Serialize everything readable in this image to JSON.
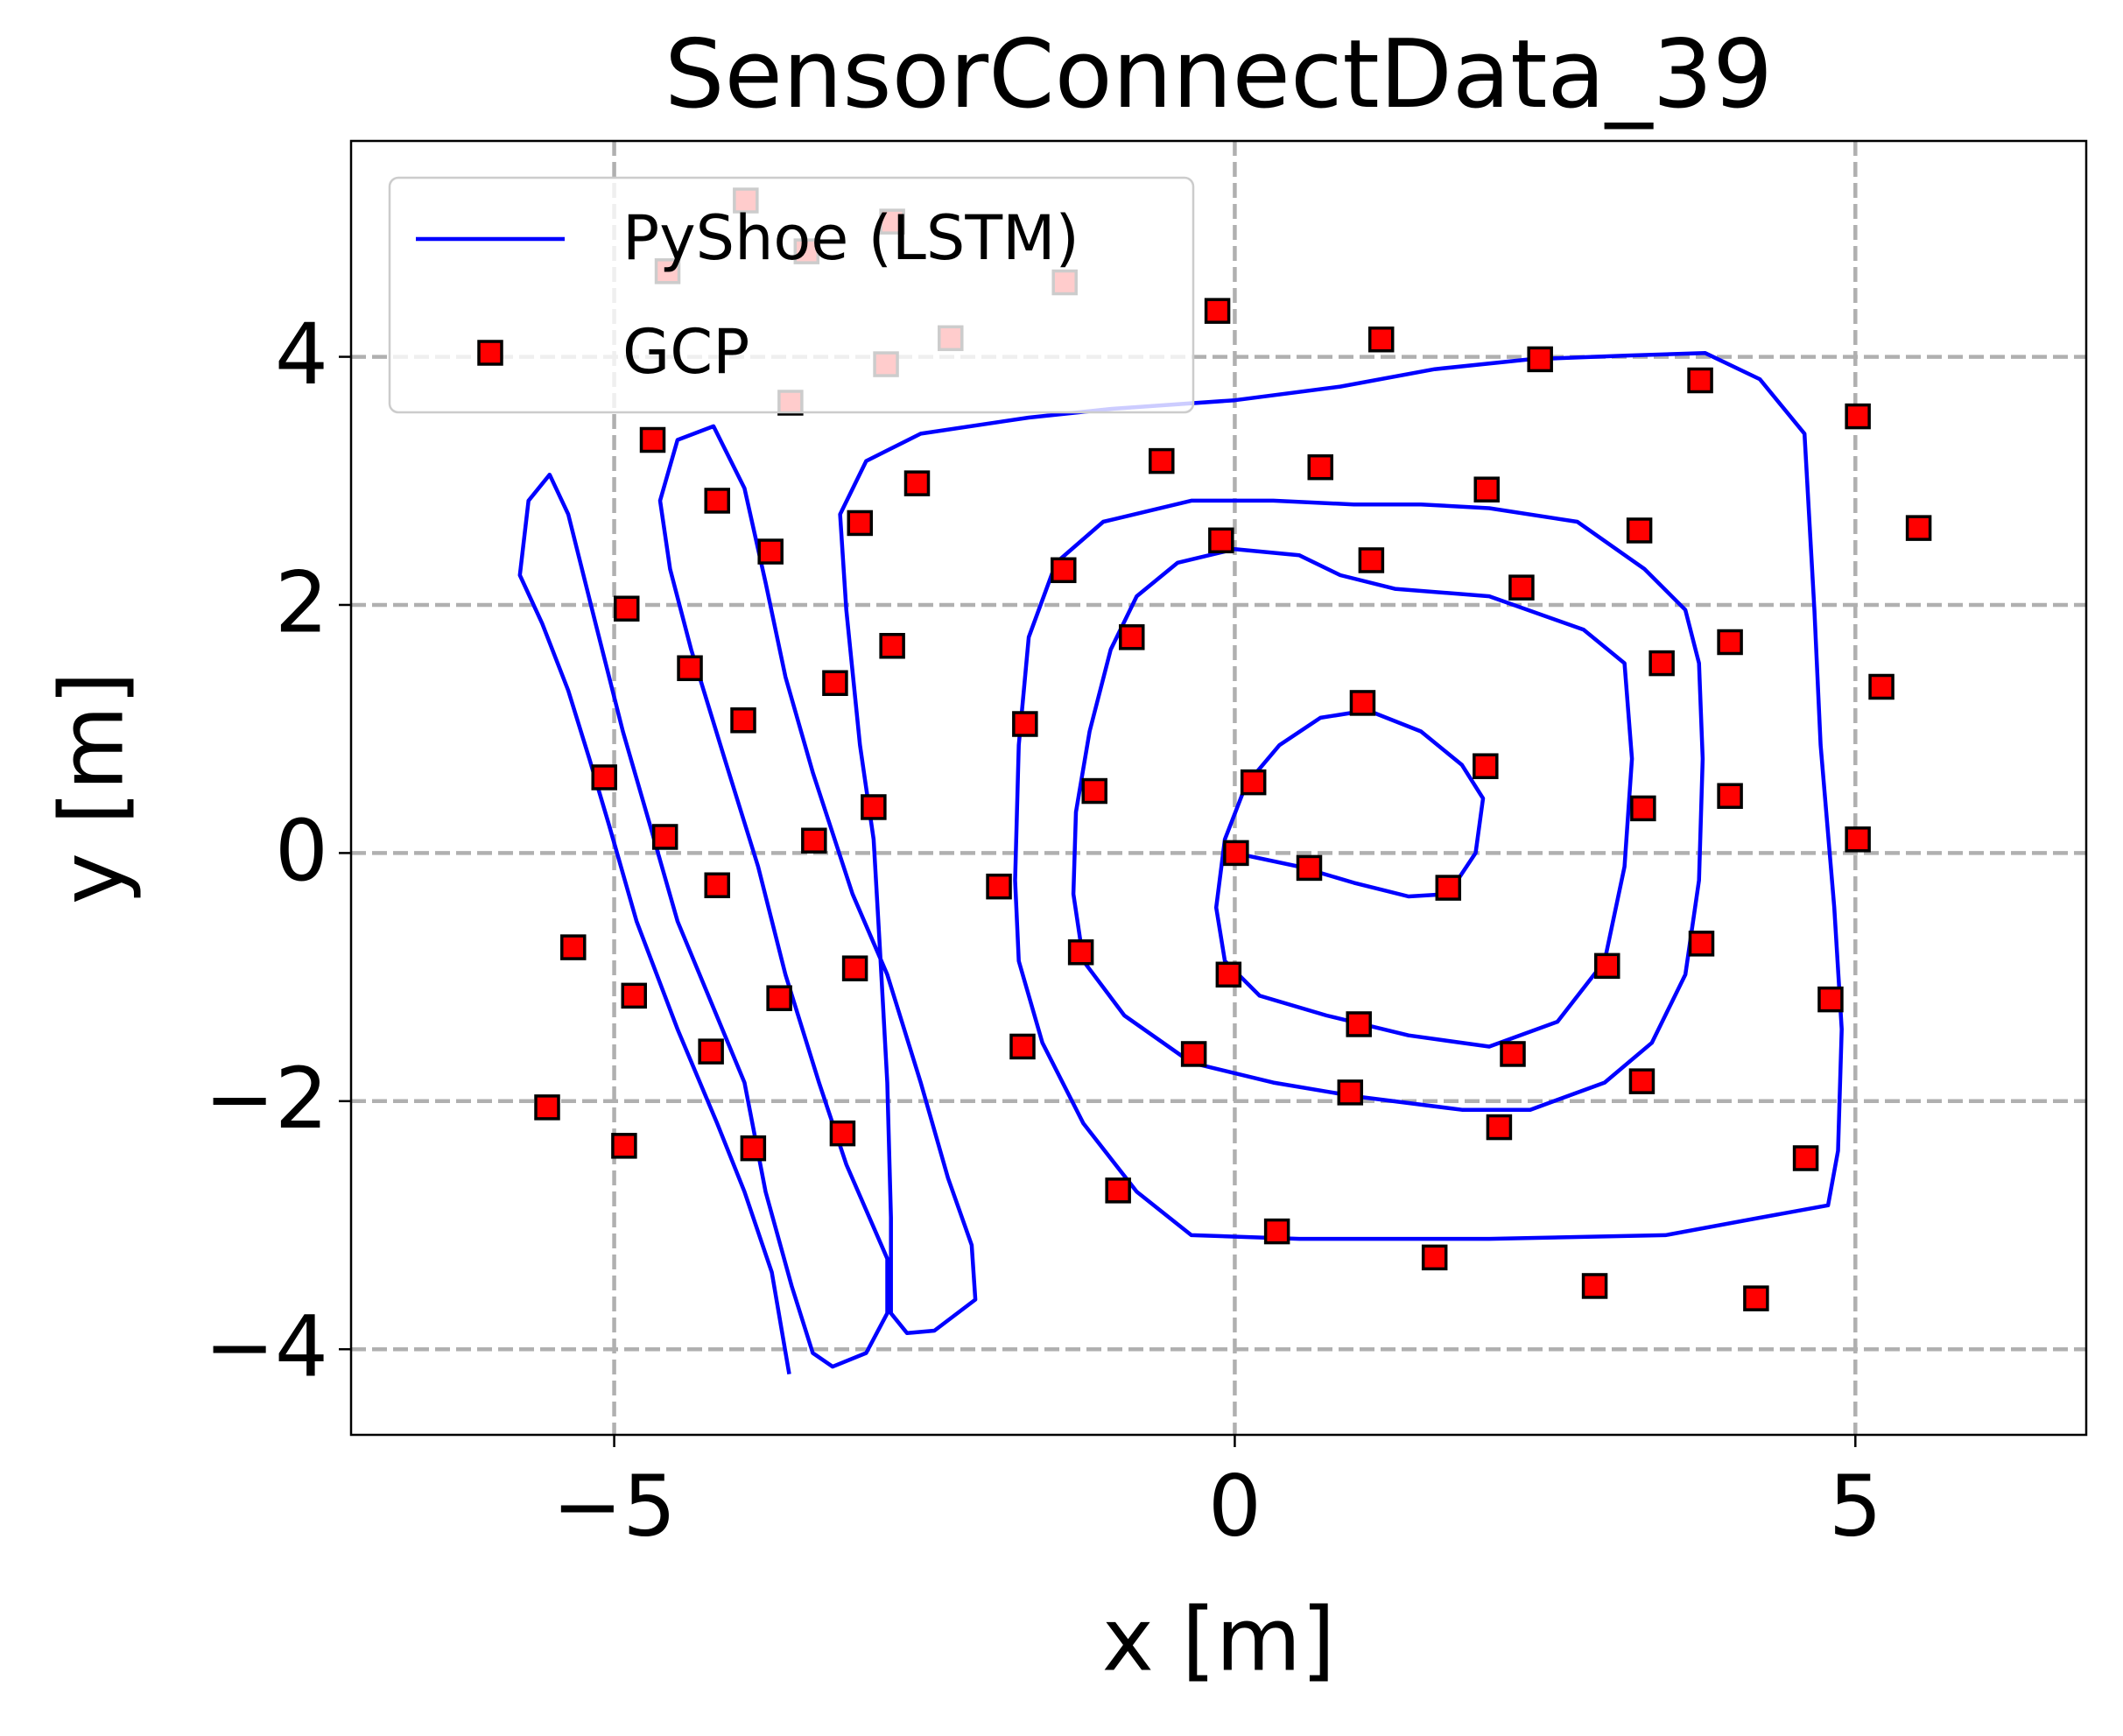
{
  "chart_data": {
    "type": "line",
    "title": "SensorConnectData_39",
    "x_label": "x [m]",
    "y_label": "y [m]",
    "xlim": [
      -7.12,
      6.86
    ],
    "ylim": [
      -4.69,
      5.74
    ],
    "xticks": [
      {
        "value": -5,
        "label": "−5"
      },
      0,
      5
    ],
    "yticks": [
      {
        "value": -4,
        "label": "−4"
      },
      {
        "value": -2,
        "label": "−2"
      },
      0,
      2,
      4
    ],
    "grid": true,
    "legend": "upper left",
    "series": [
      {
        "name": "PyShoe (LSTM)",
        "type": "line",
        "color": "#0000ff",
        "x": [
          0,
          0.52,
          0.96,
          1.4,
          1.72,
          1.94,
          2.0,
          1.83,
          1.5,
          1.07,
          0.69,
          0.36,
          0.09,
          -0.08,
          -0.15,
          -0.08,
          0.2,
          0.74,
          1.4,
          2.05,
          2.6,
          2.98,
          3.14,
          3.2,
          3.14,
          2.81,
          2.05,
          1.29,
          0.85,
          0.52,
          0,
          -0.46,
          -0.79,
          -1.0,
          -1.17,
          -1.28,
          -1.3,
          -1.22,
          -0.89,
          -0.35,
          0.31,
          0.96,
          1.83,
          2.38,
          2.98,
          3.36,
          3.63,
          3.74,
          3.77,
          3.74,
          3.63,
          3.3,
          2.76,
          2.05,
          1.5,
          0.96,
          0.31,
          -0.35,
          -1.06,
          -1.44,
          -1.66,
          -1.74,
          -1.77,
          -1.74,
          -1.55,
          -1.22,
          -0.79,
          -0.35,
          0.52,
          2.05,
          3.47,
          4.23,
          4.78,
          4.86,
          4.89,
          4.83,
          4.72,
          4.67,
          4.59,
          4.23,
          3.79,
          3.14,
          2.38,
          1.61,
          0.85,
          0,
          -1.0,
          -1.66,
          -2.53,
          -2.97,
          -3.18,
          -3.13,
          -3.02,
          -2.91,
          -2.86,
          -2.8,
          -2.77,
          -2.77,
          -2.64,
          -2.42,
          -2.09,
          -2.12,
          -2.31,
          -2.53,
          -2.8,
          -3.08,
          -3.4,
          -3.62,
          -3.78,
          -3.95,
          -4.2,
          -4.49,
          -4.63,
          -4.55,
          -4.38,
          -4.11,
          -3.84,
          -3.62,
          -3.35,
          -3.13,
          -2.8,
          -2.8,
          -2.97,
          -3.24,
          -3.4,
          -3.57,
          -3.78,
          -3.95,
          -4.22,
          -4.49,
          -4.71,
          -4.93,
          -5.15,
          -5.37,
          -5.52,
          -5.69,
          -5.76,
          -5.58,
          -5.37,
          -5.2,
          -5.04,
          -4.82,
          -4.49,
          -4.17,
          -3.95,
          -3.73,
          -3.59
        ],
        "values": [
          0,
          -0.11,
          -0.24,
          -0.35,
          -0.33,
          0,
          0.44,
          0.71,
          0.98,
          1.15,
          1.09,
          0.87,
          0.55,
          0.11,
          -0.44,
          -0.87,
          -1.15,
          -1.31,
          -1.47,
          -1.56,
          -1.36,
          -0.87,
          -0.11,
          0.76,
          1.53,
          1.8,
          2.07,
          2.13,
          2.24,
          2.4,
          2.45,
          2.34,
          2.07,
          1.64,
          0.98,
          0.33,
          -0.33,
          -0.87,
          -1.31,
          -1.69,
          -1.85,
          -1.96,
          -2.07,
          -2.07,
          -1.85,
          -1.53,
          -0.98,
          -0.22,
          0.76,
          1.53,
          1.96,
          2.29,
          2.67,
          2.78,
          2.81,
          2.81,
          2.84,
          2.84,
          2.67,
          2.34,
          1.74,
          0.87,
          -0.22,
          -0.87,
          -1.53,
          -2.18,
          -2.73,
          -3.08,
          -3.11,
          -3.11,
          -3.08,
          -2.94,
          -2.84,
          -2.4,
          -1.42,
          -0.44,
          0.87,
          1.96,
          3.38,
          3.82,
          4.03,
          4.01,
          3.98,
          3.9,
          3.76,
          3.65,
          3.58,
          3.51,
          3.38,
          3.16,
          2.73,
          1.96,
          0.87,
          0.11,
          -0.76,
          -1.85,
          -2.94,
          -3.71,
          -3.87,
          -3.85,
          -3.6,
          -3.16,
          -2.62,
          -1.85,
          -0.98,
          -0.33,
          0.65,
          1.42,
          2.18,
          2.94,
          3.44,
          3.33,
          2.84,
          2.29,
          1.64,
          0.76,
          -0.11,
          -0.98,
          -1.85,
          -2.51,
          -3.27,
          -3.71,
          -4.03,
          -4.14,
          -4.03,
          -3.49,
          -2.73,
          -1.85,
          -1.2,
          -0.55,
          0.22,
          0.98,
          1.85,
          2.73,
          3.05,
          2.84,
          2.24,
          1.85,
          1.31,
          0.76,
          0.22,
          -0.55,
          -1.42,
          -2.18,
          -2.73,
          -3.38,
          -4.2
        ]
      },
      {
        "name": "GCP",
        "type": "scatter",
        "color": "#ff0000",
        "x": [
          -3.94,
          -2.76,
          -4.57,
          -3.45,
          -1.37,
          -0.14,
          -2.29,
          -2.81,
          1.18,
          2.46,
          3.75,
          5.02,
          -3.58,
          -4.69,
          -0.59,
          0.69,
          -2.56,
          2.03,
          -4.17,
          5.51,
          -3.02,
          3.26,
          -0.11,
          -3.74,
          1.1,
          -1.38,
          2.31,
          -4.9,
          -0.83,
          3.99,
          -2.76,
          3.44,
          -4.39,
          -3.22,
          5.21,
          -3.96,
          -1.69,
          1.03,
          2.02,
          0.15,
          -5.08,
          -1.13,
          3.99,
          -2.91,
          3.29,
          -4.59,
          -3.39,
          5.02,
          0.01,
          0.6,
          -1.9,
          -4.17,
          1.72,
          3.76,
          -5.33,
          -1.24,
          3.0,
          -3.06,
          -0.05,
          -4.84,
          -3.67,
          4.8,
          1.0,
          -1.71,
          -0.33,
          -4.22,
          2.24,
          3.28,
          0.93,
          -5.54,
          -3.16,
          2.13,
          -4.92,
          -3.88,
          4.6,
          -0.94,
          0.34,
          1.61,
          2.9,
          4.2
        ],
        "values": [
          5.26,
          5.09,
          4.69,
          4.85,
          4.6,
          4.37,
          4.15,
          3.94,
          4.14,
          3.98,
          3.81,
          3.52,
          3.63,
          3.33,
          3.16,
          3.11,
          2.98,
          2.93,
          2.84,
          2.62,
          2.66,
          2.6,
          2.52,
          2.43,
          2.36,
          2.28,
          2.14,
          1.97,
          1.74,
          1.7,
          1.67,
          1.53,
          1.49,
          1.37,
          1.34,
          1.07,
          1.04,
          1.21,
          0.7,
          0.57,
          0.61,
          0.5,
          0.46,
          0.37,
          0.36,
          0.13,
          0.1,
          0.11,
          0.0,
          -0.12,
          -0.27,
          -0.26,
          -0.28,
          -0.73,
          -0.76,
          -0.8,
          -0.91,
          -0.93,
          -0.98,
          -1.15,
          -1.17,
          -1.18,
          -1.38,
          -1.56,
          -1.62,
          -1.6,
          -1.62,
          -1.84,
          -1.93,
          -2.05,
          -2.26,
          -2.21,
          -2.36,
          -2.38,
          -2.46,
          -2.72,
          -3.05,
          -3.26,
          -3.49,
          -3.59
        ]
      }
    ]
  }
}
